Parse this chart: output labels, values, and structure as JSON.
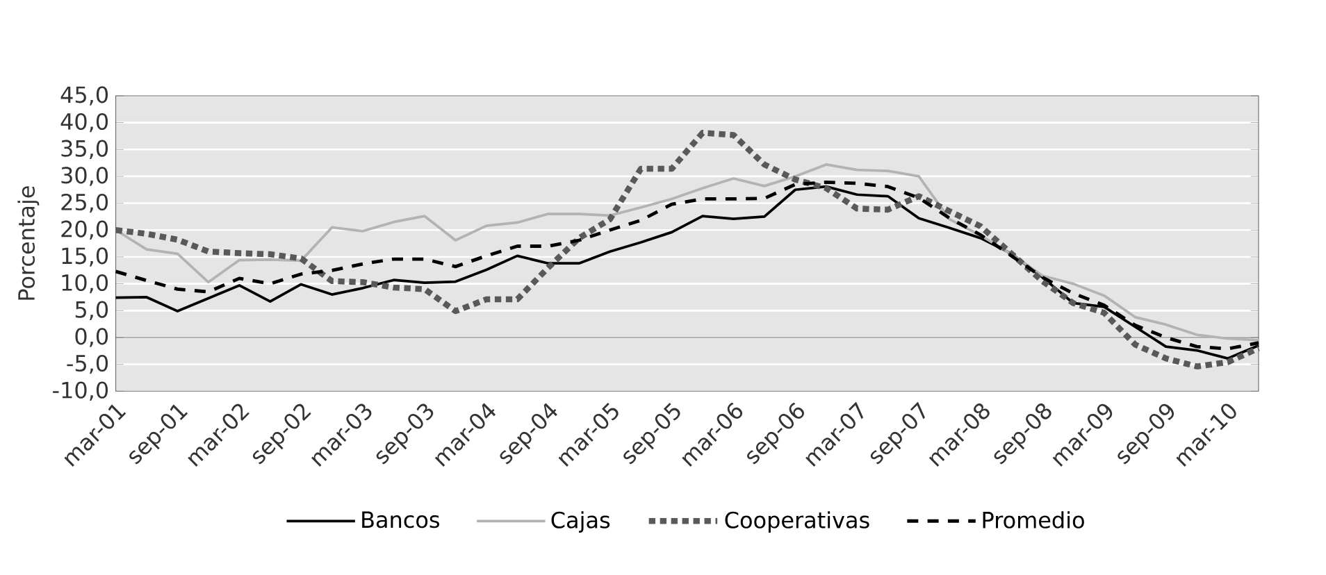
{
  "chart_data": {
    "type": "line",
    "ylabel": "Porcentaje",
    "categories": [
      "mar-01",
      null,
      "sep-01",
      null,
      "mar-02",
      null,
      "sep-02",
      null,
      "mar-03",
      null,
      "sep-03",
      null,
      "mar-04",
      null,
      "sep-04",
      null,
      "mar-05",
      null,
      "sep-05",
      null,
      "mar-06",
      null,
      "sep-06",
      null,
      "mar-07",
      null,
      "sep-07",
      null,
      "mar-08",
      null,
      "sep-08",
      null,
      "mar-09",
      null,
      "sep-09",
      null,
      "mar-10",
      null
    ],
    "series": [
      {
        "name": "Bancos",
        "color": "#000000",
        "line_style": "solid",
        "values": [
          7.4,
          7.5,
          4.9,
          7.3,
          9.7,
          6.7,
          9.9,
          8.0,
          9.2,
          10.7,
          10.2,
          10.4,
          12.6,
          15.2,
          13.8,
          13.8,
          16.0,
          17.7,
          19.6,
          22.6,
          22.1,
          22.5,
          27.5,
          28.1,
          26.6,
          26.3,
          22.2,
          20.4,
          18.5,
          15.6,
          11.2,
          6.4,
          5.7,
          2.0,
          -1.7,
          -2.4,
          -3.9,
          -1.5
        ]
      },
      {
        "name": "Cajas",
        "color": "#b3b3b3",
        "line_style": "solid",
        "values": [
          20.0,
          16.4,
          15.6,
          10.3,
          14.4,
          14.5,
          14.3,
          20.5,
          19.8,
          21.5,
          22.6,
          18.1,
          20.8,
          21.4,
          23.0,
          23.0,
          22.7,
          24.2,
          25.8,
          27.8,
          29.6,
          28.2,
          30.0,
          32.2,
          31.2,
          31.0,
          30.0,
          22.0,
          19.0,
          15.5,
          11.5,
          10.0,
          7.8,
          3.8,
          2.4,
          0.5,
          -0.2,
          -0.5
        ]
      },
      {
        "name": "Cooperativas",
        "color": "#595959",
        "line_style": "dotted",
        "values": [
          20.0,
          19.3,
          18.2,
          16.0,
          15.7,
          15.5,
          14.7,
          10.5,
          10.3,
          9.3,
          9.0,
          4.9,
          7.1,
          7.1,
          13.0,
          18.5,
          22.0,
          31.4,
          31.4,
          38.1,
          37.7,
          32.2,
          29.4,
          27.8,
          24.0,
          23.8,
          26.3,
          23.5,
          20.7,
          15.6,
          10.5,
          6.4,
          4.6,
          -1.3,
          -3.9,
          -5.4,
          -4.6,
          -2.0
        ]
      },
      {
        "name": "Promedio",
        "color": "#000000",
        "line_style": "dashed",
        "values": [
          12.3,
          10.6,
          9.0,
          8.5,
          11.0,
          10.0,
          11.8,
          12.5,
          13.7,
          14.6,
          14.6,
          13.2,
          15.2,
          17.0,
          17.0,
          18.1,
          20.0,
          21.8,
          24.8,
          25.8,
          25.8,
          25.9,
          28.5,
          28.9,
          28.7,
          28.1,
          26.0,
          22.2,
          19.1,
          15.2,
          11.2,
          8.2,
          6.0,
          2.3,
          0.0,
          -1.7,
          -2.1,
          -1.0
        ]
      }
    ],
    "ylim": [
      -10,
      45
    ],
    "yticks": [
      {
        "value": -10,
        "label": "-10,0"
      },
      {
        "value": -5,
        "label": "-5,0"
      },
      {
        "value": 0,
        "label": "0,0"
      },
      {
        "value": 5,
        "label": "5,0"
      },
      {
        "value": 10,
        "label": "10,0"
      },
      {
        "value": 15,
        "label": "15,0"
      },
      {
        "value": 20,
        "label": "20,0"
      },
      {
        "value": 25,
        "label": "25,0"
      },
      {
        "value": 30,
        "label": "30,0"
      },
      {
        "value": 35,
        "label": "35,0"
      },
      {
        "value": 40,
        "label": "40,0"
      },
      {
        "value": 45,
        "label": "45,0"
      }
    ],
    "grid": "y",
    "legend": "bottom",
    "marker": "none"
  }
}
